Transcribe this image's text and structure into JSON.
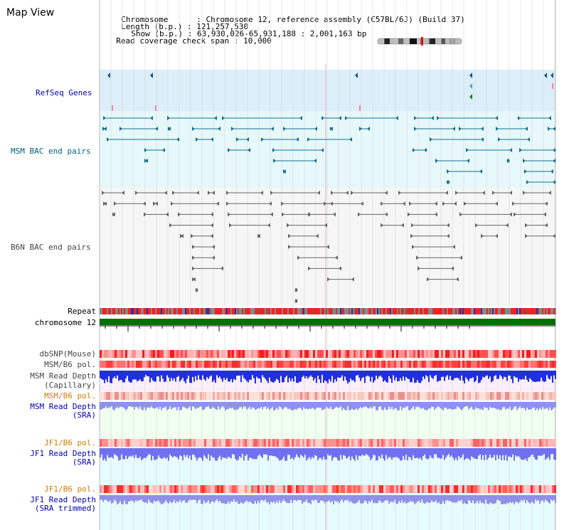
{
  "page": {
    "title": "Map View"
  },
  "info": {
    "chromosome_label": "Chromosome",
    "chromosome_value": "Chromosome 12, reference assembly (C57BL/6J) (Build 37)",
    "length_label": "Length (b.p.)",
    "length_value": "121,257,530",
    "show_label": "Show (b.p.)",
    "show_value": "63,930,026-65,931,188 : 2,001,163 bp",
    "coverage_label": "Read coverage check span",
    "coverage_value": "10,000"
  },
  "tracks": {
    "refseq": "RefSeq Genes",
    "msm_bac": "MSM BAC end pairs",
    "b6n_bac": "B6N BAC end pairs",
    "repeat": "Repeat",
    "chromosome": "chromosome 12",
    "dbsnp": "dbSNP(Mouse)",
    "msm_b6_pol": "MSM/B6 pol.",
    "msm_depth_cap_1": "MSM Read Depth",
    "msm_depth_cap_2": "(Capillary)",
    "msm_b6_pol2": "MSM/B6 pol.",
    "msm_depth_sra_1": "MSM Read Depth",
    "msm_depth_sra_2": "(SRA)",
    "jf1_b6_pol": "JF1/B6 pol.",
    "jf1_depth_sra_1": "JF1 Read Depth",
    "jf1_depth_sra_2": "(SRA)",
    "jf1_b6_pol2": "JF1/B6 pol.",
    "jf1_depth_trim_1": "JF1 Read Depth",
    "jf1_depth_trim_2": "(SRA trimmed)"
  },
  "axis": {
    "ticks": [
      "64000000",
      "64400000",
      "64800000",
      "65200000",
      "65600000"
    ]
  },
  "colors": {
    "refseq_bg": "#dbeefa",
    "msm_bg": "#e6f8fa",
    "b6n_bg": "#f5f5f5",
    "chromosome_bar": "#007000",
    "depth_blue": "#2030e0",
    "depth_light": "#8888ff"
  }
}
